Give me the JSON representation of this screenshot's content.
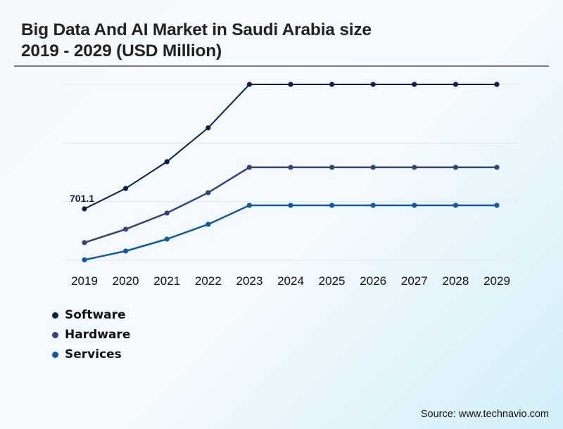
{
  "header": {
    "title_line1": "Big Data And AI Market in Saudi Arabia size",
    "title_line2": "2019 - 2029 (USD Million)"
  },
  "footer": {
    "source": "Source: www.technavio.com"
  },
  "chart_data": {
    "type": "line",
    "title": "Big Data And AI Market in Saudi Arabia size 2019 - 2029 (USD Million)",
    "xlabel": "",
    "ylabel": "USD Million",
    "categories": [
      "2019",
      "2020",
      "2021",
      "2022",
      "2023",
      "2024",
      "2025",
      "2026",
      "2027",
      "2028",
      "2029"
    ],
    "ylim": [
      0,
      2400
    ],
    "grid": true,
    "gridlines": 4,
    "legend_position": "bottom-left",
    "series": [
      {
        "name": "Software",
        "color": "#0d1f45",
        "values": [
          701.1,
          980,
          1345,
          1807,
          2400,
          2400,
          2400,
          2400,
          2400,
          2400,
          2400
        ]
      },
      {
        "name": "Hardware",
        "color": "#34437a",
        "values": [
          240,
          423,
          644,
          922,
          1268,
          1268,
          1268,
          1268,
          1268,
          1268,
          1268
        ]
      },
      {
        "name": "Services",
        "color": "#0d5ba6",
        "values": [
          5,
          125,
          288,
          490,
          749,
          749,
          749,
          749,
          749,
          749,
          749
        ]
      }
    ],
    "annotations": [
      {
        "series": "Software",
        "category": "2019",
        "text": "701.1"
      }
    ]
  }
}
